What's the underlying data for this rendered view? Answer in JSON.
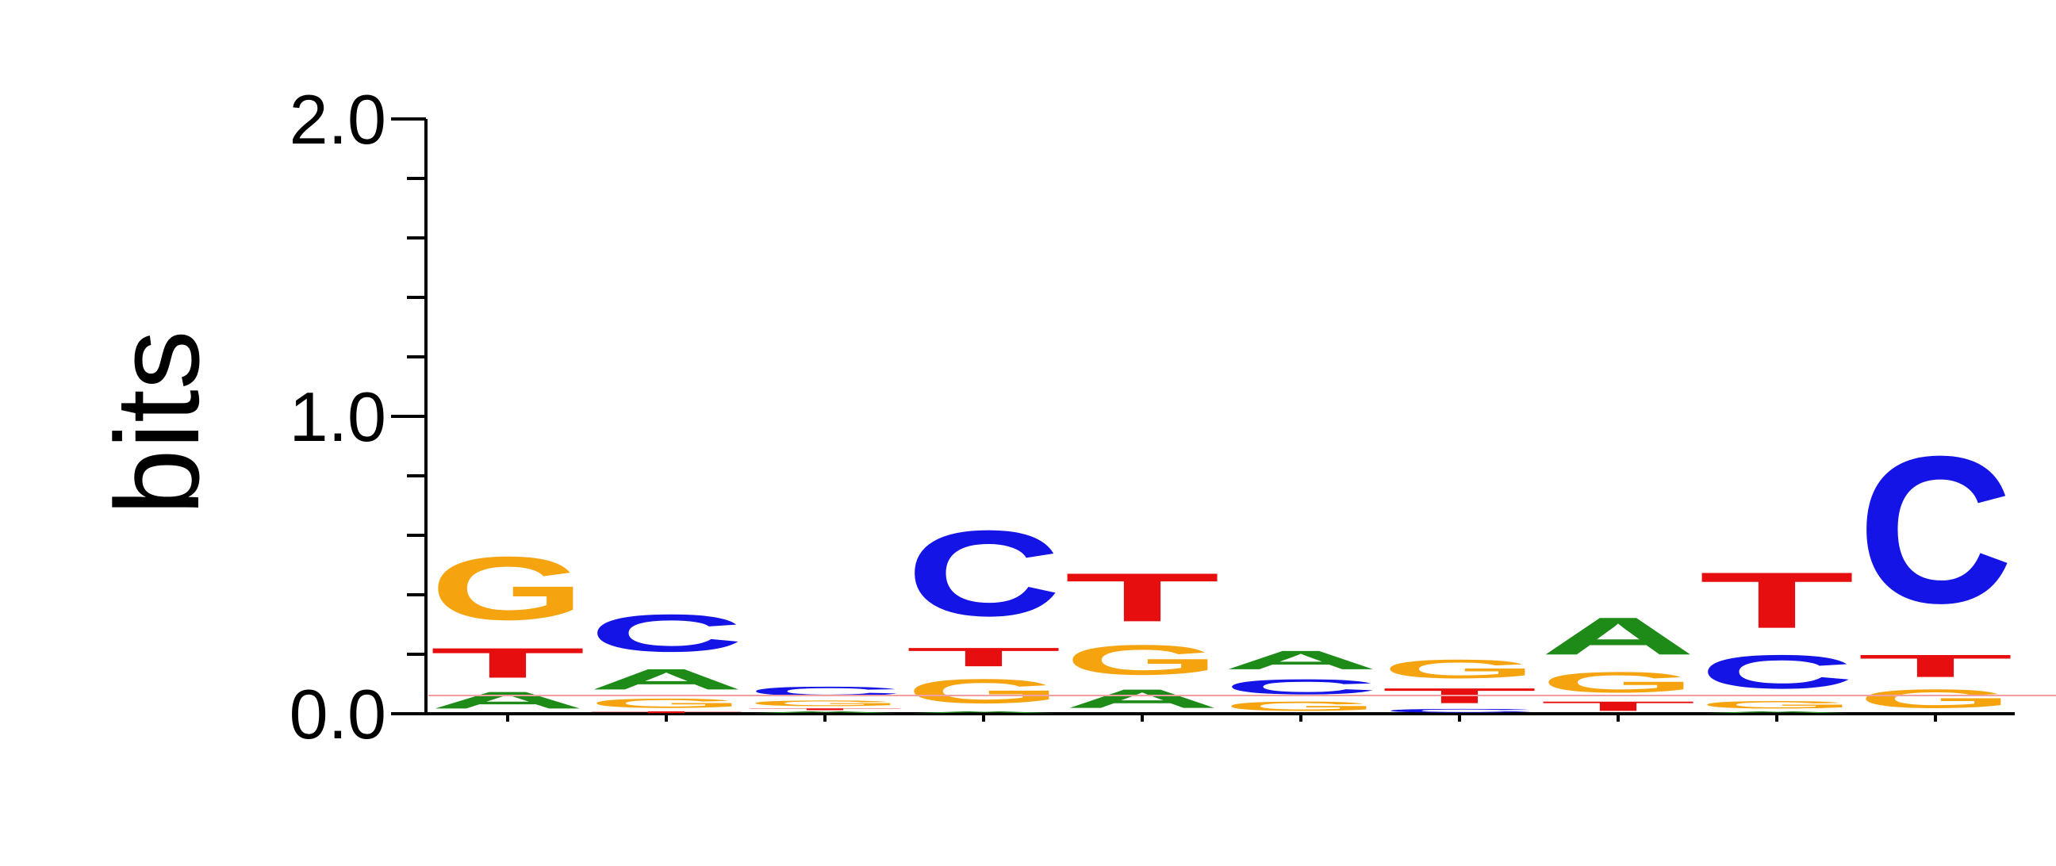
{
  "chart_data": {
    "type": "sequence-logo",
    "ylabel": "bits",
    "ylim": [
      0,
      2
    ],
    "yticks": [
      {
        "value": 0,
        "label": "0.0"
      },
      {
        "value": 1,
        "label": "1.0"
      },
      {
        "value": 2,
        "label": "2.0"
      }
    ],
    "y_minor_step": 0.2,
    "positions": 10,
    "colors": {
      "A": "#1e8a17",
      "C": "#1414e6",
      "G": "#f5a30f",
      "T": "#e60e0e"
    },
    "stacks": [
      [
        {
          "letter": "A",
          "height": 0.09
        },
        {
          "letter": "T",
          "height": 0.16
        },
        {
          "letter": "G",
          "height": 0.34
        }
      ],
      [
        {
          "letter": "T",
          "height": 0.01
        },
        {
          "letter": "G",
          "height": 0.05
        },
        {
          "letter": "A",
          "height": 0.11
        },
        {
          "letter": "C",
          "height": 0.2
        }
      ],
      [
        {
          "letter": "A",
          "height": 0.01
        },
        {
          "letter": "T",
          "height": 0.01
        },
        {
          "letter": "G",
          "height": 0.03
        },
        {
          "letter": "C",
          "height": 0.05
        }
      ],
      [
        {
          "letter": "A",
          "height": 0.01
        },
        {
          "letter": "G",
          "height": 0.13
        },
        {
          "letter": "T",
          "height": 0.1
        },
        {
          "letter": "C",
          "height": 0.46
        }
      ],
      [
        {
          "letter": "A",
          "height": 0.1
        },
        {
          "letter": "G",
          "height": 0.16
        },
        {
          "letter": "T",
          "height": 0.26
        }
      ],
      [
        {
          "letter": "G",
          "height": 0.05
        },
        {
          "letter": "C",
          "height": 0.08
        },
        {
          "letter": "A",
          "height": 0.1
        }
      ],
      [
        {
          "letter": "C",
          "height": 0.02
        },
        {
          "letter": "T",
          "height": 0.08
        },
        {
          "letter": "G",
          "height": 0.1
        }
      ],
      [
        {
          "letter": "T",
          "height": 0.05
        },
        {
          "letter": "G",
          "height": 0.11
        },
        {
          "letter": "A",
          "height": 0.2
        }
      ],
      [
        {
          "letter": "A",
          "height": 0.01
        },
        {
          "letter": "G",
          "height": 0.04
        },
        {
          "letter": "C",
          "height": 0.18
        },
        {
          "letter": "T",
          "height": 0.3
        }
      ],
      [
        {
          "letter": "G",
          "height": 0.1
        },
        {
          "letter": "T",
          "height": 0.12
        },
        {
          "letter": "C",
          "height": 0.79
        }
      ]
    ]
  }
}
